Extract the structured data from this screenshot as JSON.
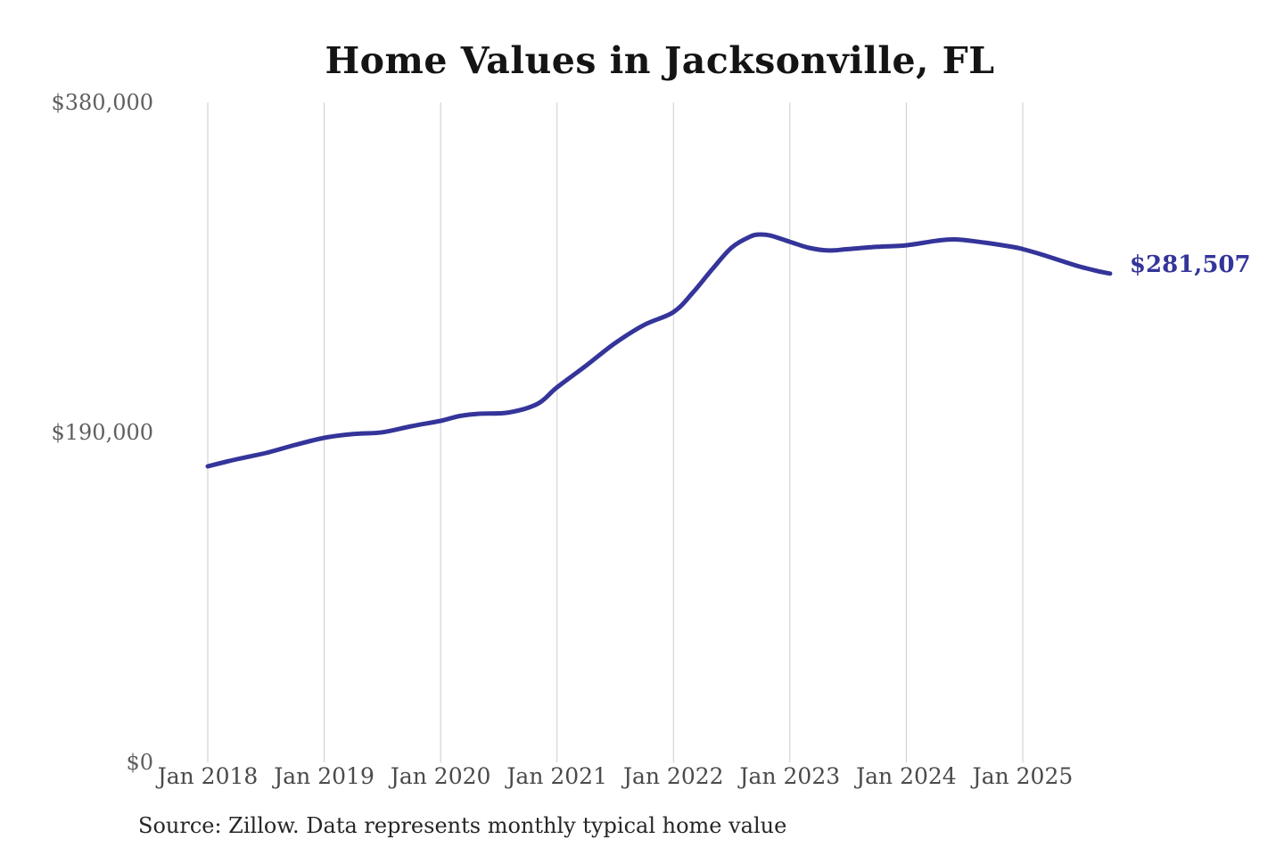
{
  "title": "Home Values in Jacksonville, FL",
  "source_note": "Source: Zillow. Data represents monthly typical home value",
  "colors": {
    "line": "#34349A",
    "grid": "#CBCBCB",
    "title_text": "#141414",
    "y_label_text": "#5F5F5F",
    "x_label_text": "#4A4A4A",
    "source_text": "#262626"
  },
  "chart_data": {
    "type": "line",
    "title": "Home Values in Jacksonville, FL",
    "xlabel": "",
    "ylabel": "",
    "ylim": [
      0,
      380000
    ],
    "grid": "vertical-only",
    "legend_position": "none",
    "x_unit": "months since Jan 2018",
    "x_tick_labels": [
      "Jan 2018",
      "Jan 2019",
      "Jan 2020",
      "Jan 2021",
      "Jan 2022",
      "Jan 2023",
      "Jan 2024",
      "Jan 2025"
    ],
    "y_ticks": [
      380000,
      190000,
      0
    ],
    "y_tick_labels": [
      "$380,000",
      "$190,000",
      "$0"
    ],
    "series": [
      {
        "name": "Monthly typical home value",
        "points": [
          [
            0,
            170500
          ],
          [
            3,
            174600
          ],
          [
            6,
            178200
          ],
          [
            9,
            182800
          ],
          [
            12,
            186900
          ],
          [
            15,
            189100
          ],
          [
            18,
            190100
          ],
          [
            21,
            193600
          ],
          [
            24,
            196700
          ],
          [
            26,
            199500
          ],
          [
            28,
            200800
          ],
          [
            31,
            201500
          ],
          [
            34,
            206500
          ],
          [
            36,
            216000
          ],
          [
            39,
            228500
          ],
          [
            42,
            241500
          ],
          [
            45,
            252000
          ],
          [
            48,
            259300
          ],
          [
            50,
            270500
          ],
          [
            52,
            284000
          ],
          [
            54,
            296500
          ],
          [
            56,
            303000
          ],
          [
            57,
            304000
          ],
          [
            58,
            303400
          ],
          [
            60,
            299800
          ],
          [
            62,
            296300
          ],
          [
            64,
            294800
          ],
          [
            66,
            295600
          ],
          [
            69,
            296900
          ],
          [
            72,
            297800
          ],
          [
            75,
            300300
          ],
          [
            77,
            301200
          ],
          [
            80,
            299400
          ],
          [
            83,
            296800
          ],
          [
            84,
            295600
          ],
          [
            86,
            292400
          ],
          [
            88,
            288800
          ],
          [
            90,
            285300
          ],
          [
            92,
            282600
          ],
          [
            93,
            281507
          ]
        ]
      }
    ],
    "last_point": {
      "label": "$281,507",
      "value": 281507,
      "month": "Oct 2025"
    }
  }
}
